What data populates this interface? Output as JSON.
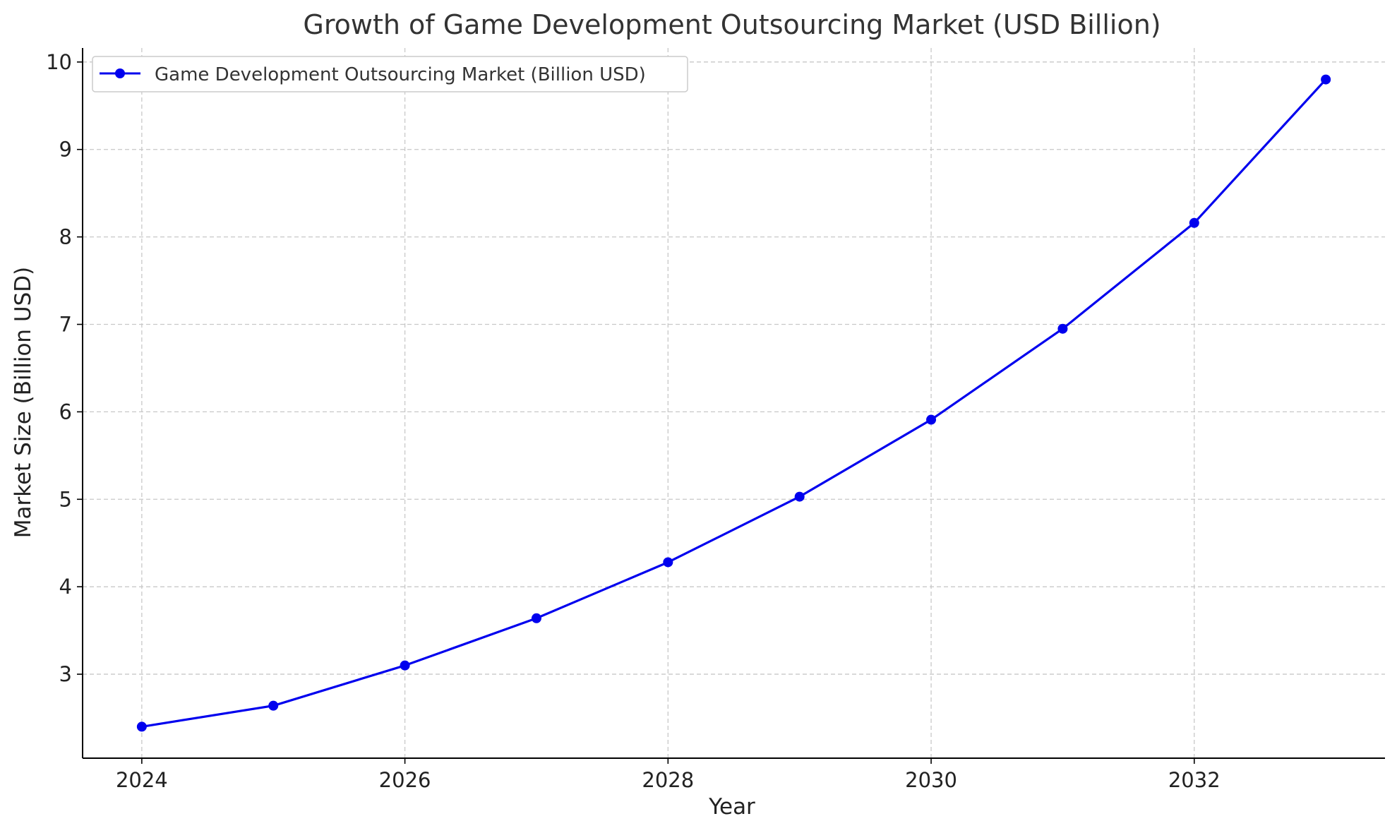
{
  "chart_data": {
    "type": "line",
    "title": "Growth of Game Development Outsourcing Market (USD Billion)",
    "xlabel": "Year",
    "ylabel": "Market Size (Billion USD)",
    "x": [
      2024,
      2025,
      2026,
      2027,
      2028,
      2029,
      2030,
      2031,
      2032,
      2033
    ],
    "xticks": [
      2024,
      2026,
      2028,
      2030,
      2032
    ],
    "yticks": [
      3,
      4,
      5,
      6,
      7,
      8,
      9,
      10
    ],
    "xlim": [
      2023.55,
      2033.45
    ],
    "ylim": [
      2.04,
      10.16
    ],
    "grid": true,
    "legend_position": "upper-left",
    "series": [
      {
        "name": "Game Development Outsourcing Market (Billion USD)",
        "color": "#0000ee",
        "marker": "circle",
        "values": [
          2.4,
          2.64,
          3.1,
          3.64,
          4.28,
          5.03,
          5.91,
          6.95,
          8.16,
          9.8
        ]
      }
    ]
  }
}
